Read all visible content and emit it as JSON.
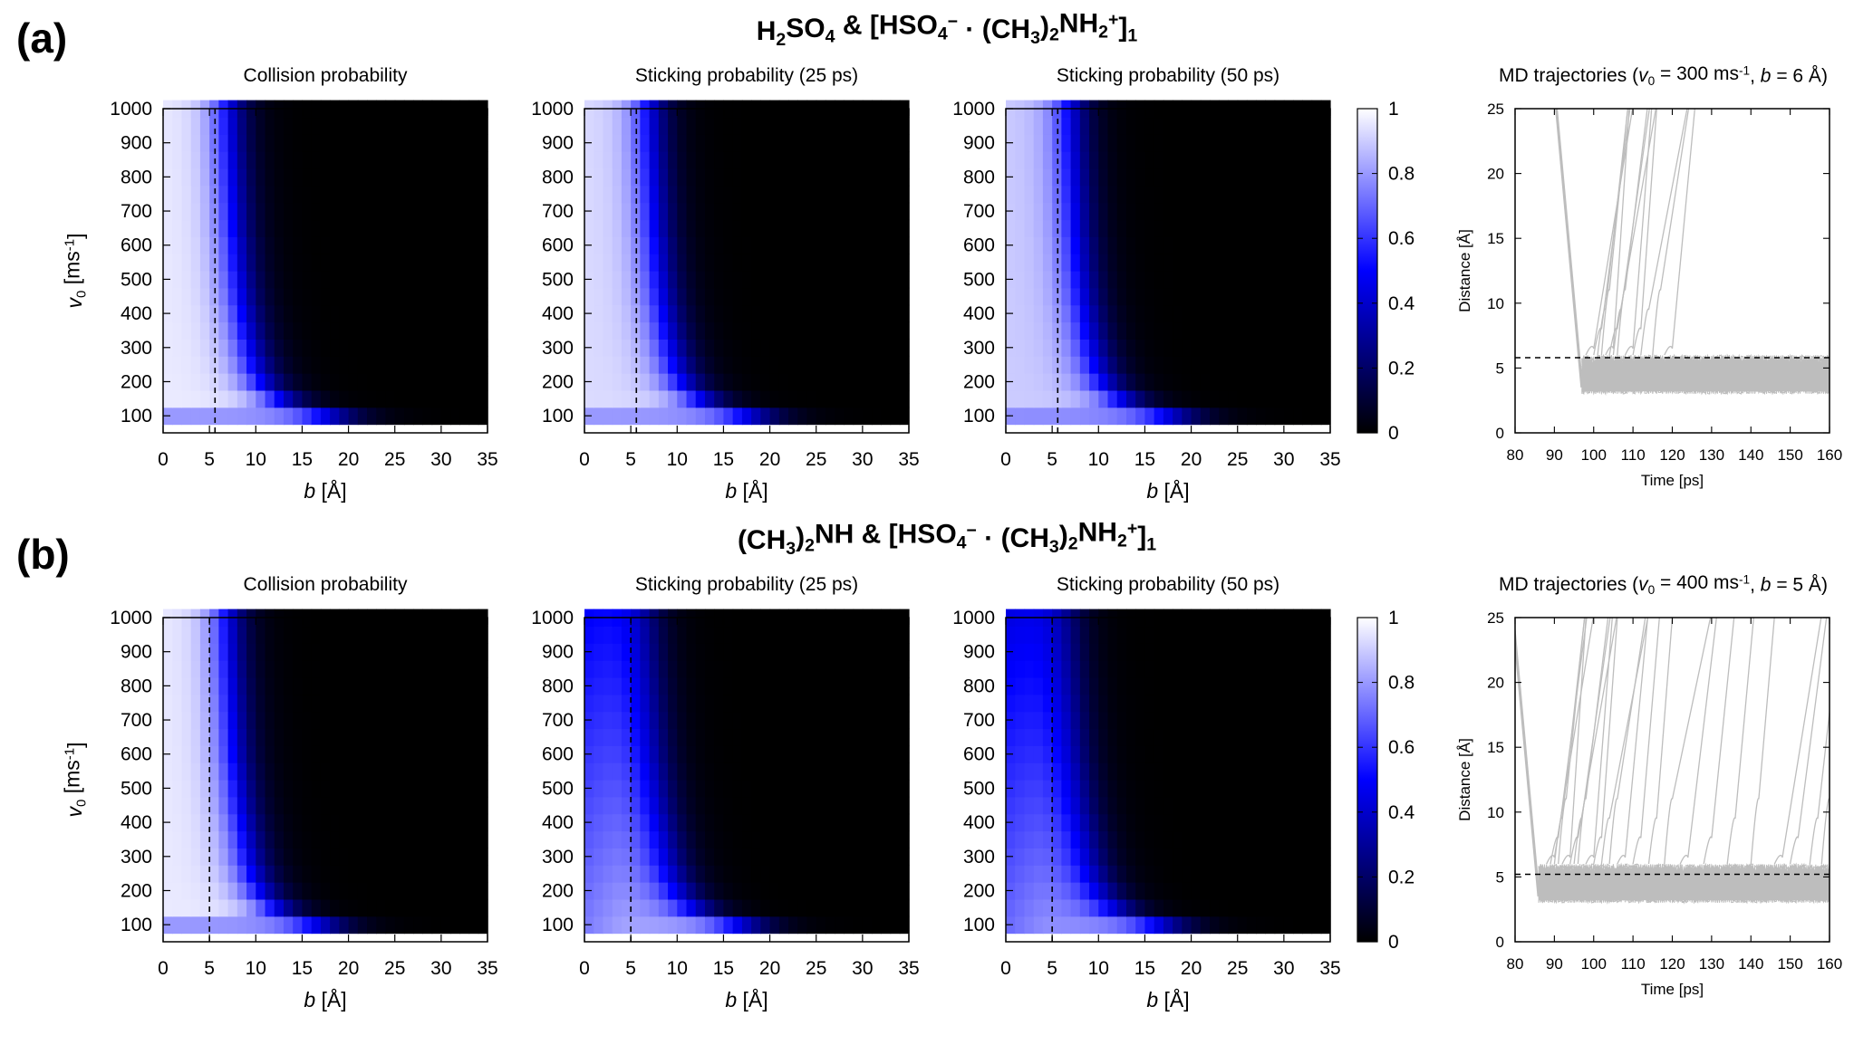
{
  "figure": {
    "panels": [
      {
        "label": "(a)",
        "title_parts": [
          {
            "t": "H"
          },
          {
            "t": "2",
            "sub": true
          },
          {
            "t": "SO"
          },
          {
            "t": "4",
            "sub": true
          },
          {
            "t": " & [HSO"
          },
          {
            "t": "4",
            "sub": true
          },
          {
            "t": "−",
            "sup": true
          },
          {
            "t": " · (CH"
          },
          {
            "t": "3",
            "sub": true
          },
          {
            "t": ")"
          },
          {
            "t": "2",
            "sub": true
          },
          {
            "t": "NH"
          },
          {
            "t": "2",
            "sub": true
          },
          {
            "t": "+",
            "sup": true
          },
          {
            "t": "]"
          },
          {
            "t": "1",
            "sub": true
          }
        ],
        "heatmap_titles": [
          "Collision probability",
          "Sticking probability (25 ps)",
          "Sticking probability (50 ps)"
        ],
        "md_title_parts": [
          {
            "t": "MD trajectories ("
          },
          {
            "t": "v",
            "i": true
          },
          {
            "t": "0",
            "sub": true
          },
          {
            "t": " = 300 ms"
          },
          {
            "t": "-1",
            "sup": true
          },
          {
            "t": ", "
          },
          {
            "t": "b",
            "i": true
          },
          {
            "t": " = 6 Å)"
          }
        ]
      },
      {
        "label": "(b)",
        "title_parts": [
          {
            "t": "(CH"
          },
          {
            "t": "3",
            "sub": true
          },
          {
            "t": ")"
          },
          {
            "t": "2",
            "sub": true
          },
          {
            "t": "NH & [HSO"
          },
          {
            "t": "4",
            "sub": true
          },
          {
            "t": "−",
            "sup": true
          },
          {
            "t": " · (CH"
          },
          {
            "t": "3",
            "sub": true
          },
          {
            "t": ")"
          },
          {
            "t": "2",
            "sub": true
          },
          {
            "t": "NH"
          },
          {
            "t": "2",
            "sub": true
          },
          {
            "t": "+",
            "sup": true
          },
          {
            "t": "]"
          },
          {
            "t": "1",
            "sub": true
          }
        ],
        "heatmap_titles": [
          "Collision probability",
          "Sticking probability (25 ps)",
          "Sticking probability (50 ps)"
        ],
        "md_title_parts": [
          {
            "t": "MD trajectories ("
          },
          {
            "t": "v",
            "i": true
          },
          {
            "t": "0",
            "sub": true
          },
          {
            "t": " = 400 ms"
          },
          {
            "t": "-1",
            "sup": true
          },
          {
            "t": ", "
          },
          {
            "t": "b",
            "i": true
          },
          {
            "t": " = 5 Å)"
          }
        ]
      }
    ],
    "heatmap_xlabel_parts": [
      {
        "t": "b",
        "i": true
      },
      {
        "t": " [Å]"
      }
    ],
    "heatmap_ylabel_parts": [
      {
        "t": "v",
        "i": true
      },
      {
        "t": "0",
        "sub": true
      },
      {
        "t": " [ms"
      },
      {
        "t": "-1",
        "sup": true
      },
      {
        "t": "]"
      }
    ],
    "md_xlabel": "Time [ps]",
    "md_ylabel": "Distance [Å]",
    "colorbar_ticks": [
      "0",
      "0.2",
      "0.4",
      "0.6",
      "0.8",
      "1"
    ],
    "colors": {
      "low": "#000000",
      "mid": "#0000ff",
      "high": "#ffffff",
      "trajectory": "#bdbdbd"
    }
  },
  "chart_data": [
    {
      "type": "heatmap",
      "panel": "a",
      "title": "Collision probability",
      "xlabel": "b [Å]",
      "ylabel": "v0 [ms-1]",
      "xlim": [
        0,
        35
      ],
      "ylim": [
        50,
        1000
      ],
      "xticks": [
        0,
        5,
        10,
        15,
        20,
        25,
        30,
        35
      ],
      "yticks": [
        100,
        200,
        300,
        400,
        500,
        600,
        700,
        800,
        900,
        1000
      ],
      "zlim": [
        0,
        1
      ],
      "v0_grid": [
        100,
        150,
        200,
        250,
        300,
        350,
        400,
        450,
        500,
        550,
        600,
        650,
        700,
        750,
        800,
        850,
        900,
        950,
        1000
      ],
      "b_grid_step": 1,
      "b_half_at_v0": [
        18,
        12.5,
        10.6,
        9.8,
        9.3,
        8.9,
        8.6,
        8.3,
        8.1,
        7.9,
        7.8,
        7.6,
        7.5,
        7.4,
        7.3,
        7.2,
        7.1,
        7.05,
        7
      ],
      "peak": 0.96,
      "low_v0_peak": 0.8,
      "dashed_b": 5.6
    },
    {
      "type": "heatmap",
      "panel": "a",
      "title": "Sticking probability (25 ps)",
      "xlabel": "b [Å]",
      "ylabel": "v0 [ms-1]",
      "xlim": [
        0,
        35
      ],
      "ylim": [
        50,
        1000
      ],
      "xticks": [
        0,
        5,
        10,
        15,
        20,
        25,
        30,
        35
      ],
      "yticks": [
        100,
        200,
        300,
        400,
        500,
        600,
        700,
        800,
        900,
        1000
      ],
      "zlim": [
        0,
        1
      ],
      "v0_grid": [
        100,
        150,
        200,
        250,
        300,
        350,
        400,
        450,
        500,
        550,
        600,
        650,
        700,
        750,
        800,
        850,
        900,
        950,
        1000
      ],
      "b_grid_step": 1,
      "b_half_at_v0": [
        18,
        12.5,
        10.6,
        9.8,
        9.3,
        8.9,
        8.6,
        8.3,
        8.1,
        7.9,
        7.8,
        7.6,
        7.5,
        7.4,
        7.3,
        7.2,
        7.1,
        7.05,
        7
      ],
      "peak": 0.93,
      "low_v0_peak": 0.8,
      "dashed_b": 5.6
    },
    {
      "type": "heatmap",
      "panel": "a",
      "title": "Sticking probability (50 ps)",
      "xlabel": "b [Å]",
      "ylabel": "v0 [ms-1]",
      "xlim": [
        0,
        35
      ],
      "ylim": [
        50,
        1000
      ],
      "xticks": [
        0,
        5,
        10,
        15,
        20,
        25,
        30,
        35
      ],
      "yticks": [
        100,
        200,
        300,
        400,
        500,
        600,
        700,
        800,
        900,
        1000
      ],
      "zlim": [
        0,
        1
      ],
      "v0_grid": [
        100,
        150,
        200,
        250,
        300,
        350,
        400,
        450,
        500,
        550,
        600,
        650,
        700,
        750,
        800,
        850,
        900,
        950,
        1000
      ],
      "b_grid_step": 1,
      "b_half_at_v0": [
        18,
        12.5,
        10.6,
        9.8,
        9.3,
        8.9,
        8.6,
        8.3,
        8.1,
        7.9,
        7.8,
        7.6,
        7.5,
        7.4,
        7.3,
        7.2,
        7.1,
        7.05,
        7
      ],
      "peak": 0.9,
      "low_v0_peak": 0.78,
      "dashed_b": 5.6
    },
    {
      "type": "line",
      "panel": "a",
      "title": "MD trajectories (v0 = 300 ms-1, b = 6 Å)",
      "xlabel": "Time [ps]",
      "ylabel": "Distance [Å]",
      "xlim": [
        80,
        160
      ],
      "ylim": [
        0,
        25
      ],
      "xticks": [
        80,
        90,
        100,
        110,
        120,
        130,
        140,
        150,
        160
      ],
      "yticks": [
        0,
        5,
        10,
        15,
        20,
        25
      ],
      "dashed_y": 5.8,
      "approach_time": 97,
      "band": [
        3,
        6
      ],
      "escape_times": [
        98,
        100,
        101,
        102,
        103,
        104,
        105,
        106,
        108,
        110,
        112,
        115,
        118
      ]
    },
    {
      "type": "heatmap",
      "panel": "b",
      "title": "Collision probability",
      "xlabel": "b [Å]",
      "ylabel": "v0 [ms-1]",
      "xlim": [
        0,
        35
      ],
      "ylim": [
        50,
        1000
      ],
      "xticks": [
        0,
        5,
        10,
        15,
        20,
        25,
        30,
        35
      ],
      "yticks": [
        100,
        200,
        300,
        400,
        500,
        600,
        700,
        800,
        900,
        1000
      ],
      "zlim": [
        0,
        1
      ],
      "v0_grid": [
        100,
        150,
        200,
        250,
        300,
        350,
        400,
        450,
        500,
        550,
        600,
        650,
        700,
        750,
        800,
        850,
        900,
        950,
        1000
      ],
      "b_grid_step": 1,
      "b_half_at_v0": [
        17,
        12,
        10.4,
        9.6,
        9.1,
        8.8,
        8.5,
        8.2,
        8,
        7.8,
        7.6,
        7.5,
        7.4,
        7.3,
        7.2,
        7.1,
        7,
        6.95,
        6.9
      ],
      "peak": 0.96,
      "low_v0_peak": 0.8,
      "dashed_b": 5
    },
    {
      "type": "heatmap",
      "panel": "b",
      "title": "Sticking probability (25 ps)",
      "xlabel": "b [Å]",
      "ylabel": "v0 [ms-1]",
      "xlim": [
        0,
        35
      ],
      "ylim": [
        50,
        1000
      ],
      "xticks": [
        0,
        5,
        10,
        15,
        20,
        25,
        30,
        35
      ],
      "yticks": [
        100,
        200,
        300,
        400,
        500,
        600,
        700,
        800,
        900,
        1000
      ],
      "zlim": [
        0,
        1
      ],
      "v0_grid": [
        100,
        150,
        200,
        250,
        300,
        350,
        400,
        450,
        500,
        550,
        600,
        650,
        700,
        750,
        800,
        850,
        900,
        950,
        1000
      ],
      "b_grid_step": 1,
      "b_half_at_v0": [
        17,
        12,
        10.4,
        9.6,
        9.1,
        8.8,
        8.5,
        8.2,
        8,
        7.8,
        7.6,
        7.5,
        7.4,
        7.3,
        7.2,
        7.1,
        7,
        6.95,
        6.9
      ],
      "peak": 0.82,
      "low_v0_peak": 0.75,
      "high_v0_peak": 0.55,
      "dashed_b": 5
    },
    {
      "type": "heatmap",
      "panel": "b",
      "title": "Sticking probability (50 ps)",
      "xlabel": "b [Å]",
      "ylabel": "v0 [ms-1]",
      "xlim": [
        0,
        35
      ],
      "ylim": [
        50,
        1000
      ],
      "xticks": [
        0,
        5,
        10,
        15,
        20,
        25,
        30,
        35
      ],
      "yticks": [
        100,
        200,
        300,
        400,
        500,
        600,
        700,
        800,
        900,
        1000
      ],
      "zlim": [
        0,
        1
      ],
      "v0_grid": [
        100,
        150,
        200,
        250,
        300,
        350,
        400,
        450,
        500,
        550,
        600,
        650,
        700,
        750,
        800,
        850,
        900,
        950,
        1000
      ],
      "b_grid_step": 1,
      "b_half_at_v0": [
        17,
        12,
        10.4,
        9.6,
        9.1,
        8.8,
        8.5,
        8.2,
        8,
        7.8,
        7.6,
        7.5,
        7.4,
        7.3,
        7.2,
        7.1,
        7,
        6.95,
        6.9
      ],
      "peak": 0.78,
      "low_v0_peak": 0.72,
      "high_v0_peak": 0.5,
      "dashed_b": 5
    },
    {
      "type": "line",
      "panel": "b",
      "title": "MD trajectories (v0 = 400 ms-1, b = 5 Å)",
      "xlabel": "Time [ps]",
      "ylabel": "Distance [Å]",
      "xlim": [
        80,
        160
      ],
      "ylim": [
        0,
        25
      ],
      "xticks": [
        80,
        90,
        100,
        110,
        120,
        130,
        140,
        150,
        160
      ],
      "yticks": [
        0,
        5,
        10,
        15,
        20,
        25
      ],
      "dashed_y": 5.2,
      "approach_time": 86,
      "band": [
        3,
        6
      ],
      "escape_times": [
        88,
        89,
        90,
        91,
        92,
        94,
        95,
        96,
        98,
        100,
        102,
        104,
        106,
        110,
        114,
        118,
        122,
        128,
        134,
        140,
        146,
        150,
        155,
        158
      ]
    }
  ]
}
